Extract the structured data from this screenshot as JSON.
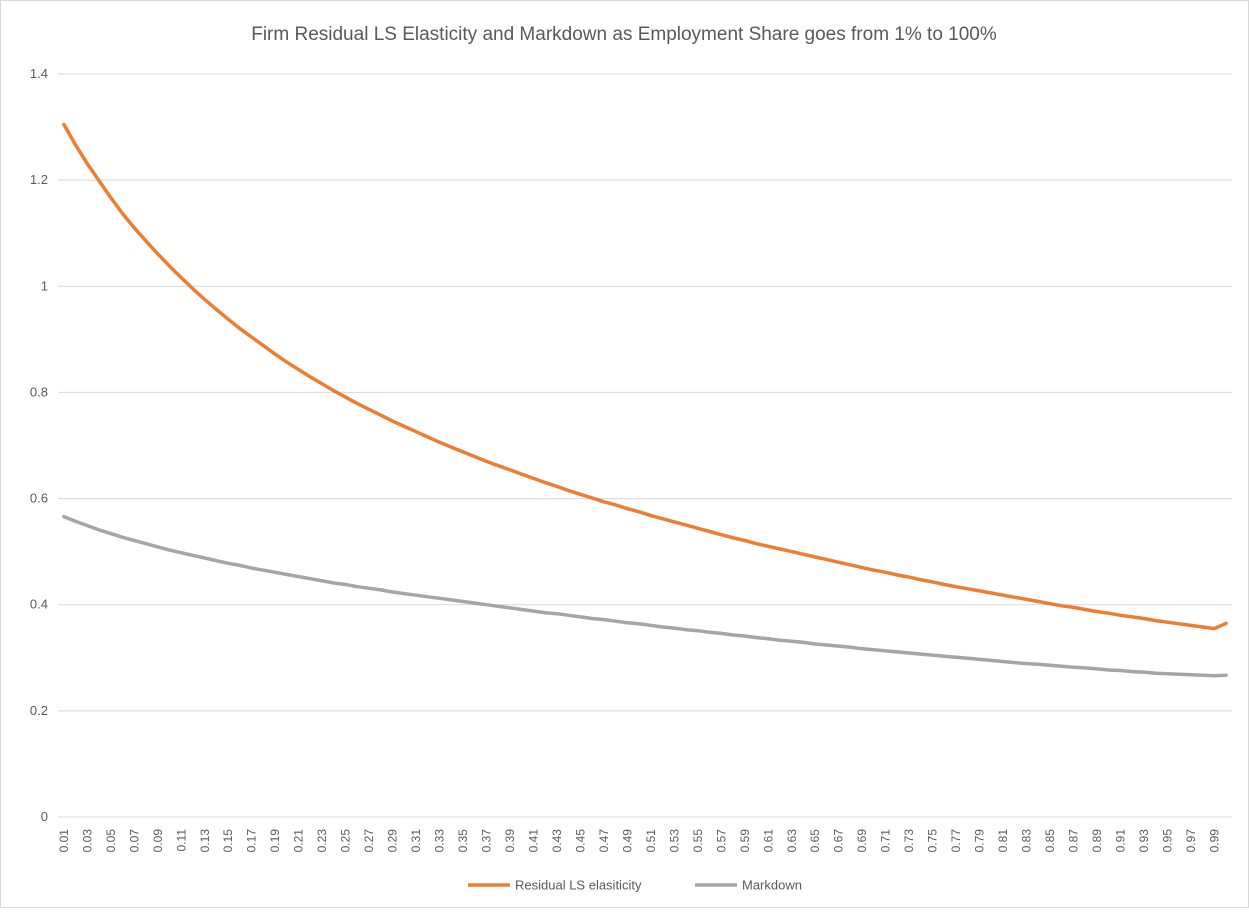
{
  "chart_data": {
    "type": "line",
    "title": "Firm Residual LS Elasticity and Markdown as Employment Share goes from 1% to 100%",
    "xlabel": "",
    "ylabel": "",
    "ylim": [
      0,
      1.4
    ],
    "yticks": [
      "0",
      "0.2",
      "0.4",
      "0.6",
      "0.8",
      "1",
      "1.2",
      "1.4"
    ],
    "grid": true,
    "legend_position": "bottom",
    "x": [
      0.01,
      0.02,
      0.03,
      0.04,
      0.05,
      0.06,
      0.07,
      0.08,
      0.09,
      0.1,
      0.11,
      0.12,
      0.13,
      0.14,
      0.15,
      0.16,
      0.17,
      0.18,
      0.19,
      0.2,
      0.21,
      0.22,
      0.23,
      0.24,
      0.25,
      0.26,
      0.27,
      0.28,
      0.29,
      0.3,
      0.31,
      0.32,
      0.33,
      0.34,
      0.35,
      0.36,
      0.37,
      0.38,
      0.39,
      0.4,
      0.41,
      0.42,
      0.43,
      0.44,
      0.45,
      0.46,
      0.47,
      0.48,
      0.49,
      0.5,
      0.51,
      0.52,
      0.53,
      0.54,
      0.55,
      0.56,
      0.57,
      0.58,
      0.59,
      0.6,
      0.61,
      0.62,
      0.63,
      0.64,
      0.65,
      0.66,
      0.67,
      0.68,
      0.69,
      0.7,
      0.71,
      0.72,
      0.73,
      0.74,
      0.75,
      0.76,
      0.77,
      0.78,
      0.79,
      0.8,
      0.81,
      0.82,
      0.83,
      0.84,
      0.85,
      0.86,
      0.87,
      0.88,
      0.89,
      0.9,
      0.91,
      0.92,
      0.93,
      0.94,
      0.95,
      0.96,
      0.97,
      0.98,
      0.99,
      1.0
    ],
    "xtick_labels": [
      "0.01",
      "0.03",
      "0.05",
      "0.07",
      "0.09",
      "0.11",
      "0.13",
      "0.15",
      "0.17",
      "0.19",
      "0.21",
      "0.23",
      "0.25",
      "0.27",
      "0.29",
      "0.31",
      "0.33",
      "0.35",
      "0.37",
      "0.39",
      "0.41",
      "0.43",
      "0.45",
      "0.47",
      "0.49",
      "0.51",
      "0.53",
      "0.55",
      "0.57",
      "0.59",
      "0.61",
      "0.63",
      "0.65",
      "0.67",
      "0.69",
      "0.71",
      "0.73",
      "0.75",
      "0.77",
      "0.79",
      "0.81",
      "0.83",
      "0.85",
      "0.87",
      "0.89",
      "0.91",
      "0.93",
      "0.95",
      "0.97",
      "0.99"
    ],
    "series": [
      {
        "name": "Residual LS elasiticity",
        "color": "#ed7d31",
        "values": [
          1.305,
          1.266,
          1.231,
          1.199,
          1.167,
          1.137,
          1.11,
          1.085,
          1.061,
          1.038,
          1.016,
          0.995,
          0.975,
          0.956,
          0.938,
          0.92,
          0.904,
          0.888,
          0.872,
          0.857,
          0.843,
          0.829,
          0.816,
          0.803,
          0.791,
          0.779,
          0.768,
          0.757,
          0.746,
          0.736,
          0.726,
          0.716,
          0.706,
          0.697,
          0.688,
          0.679,
          0.67,
          0.662,
          0.654,
          0.646,
          0.638,
          0.63,
          0.623,
          0.615,
          0.608,
          0.601,
          0.594,
          0.588,
          0.581,
          0.575,
          0.568,
          0.562,
          0.556,
          0.55,
          0.544,
          0.538,
          0.532,
          0.526,
          0.521,
          0.515,
          0.51,
          0.505,
          0.5,
          0.495,
          0.49,
          0.485,
          0.48,
          0.475,
          0.47,
          0.465,
          0.461,
          0.456,
          0.452,
          0.447,
          0.443,
          0.438,
          0.434,
          0.43,
          0.426,
          0.422,
          0.418,
          0.414,
          0.41,
          0.406,
          0.402,
          0.398,
          0.395,
          0.391,
          0.387,
          0.384,
          0.38,
          0.377,
          0.374,
          0.37,
          0.367,
          0.364,
          0.361,
          0.358,
          0.355,
          0.365
        ]
      },
      {
        "name": "Markdown",
        "color": "#a5a5a5",
        "values": [
          0.566,
          0.557,
          0.549,
          0.541,
          0.534,
          0.527,
          0.521,
          0.515,
          0.509,
          0.503,
          0.498,
          0.493,
          0.488,
          0.483,
          0.478,
          0.474,
          0.469,
          0.465,
          0.461,
          0.457,
          0.453,
          0.449,
          0.445,
          0.441,
          0.438,
          0.434,
          0.431,
          0.428,
          0.424,
          0.421,
          0.418,
          0.415,
          0.412,
          0.409,
          0.406,
          0.403,
          0.4,
          0.397,
          0.394,
          0.391,
          0.388,
          0.385,
          0.383,
          0.38,
          0.377,
          0.374,
          0.372,
          0.369,
          0.366,
          0.364,
          0.361,
          0.358,
          0.356,
          0.353,
          0.351,
          0.348,
          0.346,
          0.343,
          0.341,
          0.338,
          0.336,
          0.333,
          0.331,
          0.329,
          0.326,
          0.324,
          0.322,
          0.32,
          0.317,
          0.315,
          0.313,
          0.311,
          0.309,
          0.307,
          0.305,
          0.303,
          0.301,
          0.299,
          0.297,
          0.295,
          0.293,
          0.291,
          0.289,
          0.288,
          0.286,
          0.284,
          0.282,
          0.281,
          0.279,
          0.277,
          0.276,
          0.274,
          0.273,
          0.271,
          0.27,
          0.269,
          0.268,
          0.267,
          0.266,
          0.267
        ]
      }
    ]
  }
}
